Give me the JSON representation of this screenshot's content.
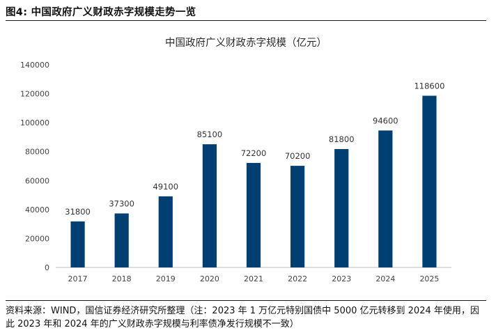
{
  "figure_heading": "图4: 中国政府广义财政赤字规模走势一览",
  "source_note": "资料来源：WIND，国信证券经济研究所整理（注：2023 年 1 万亿元特别国债中 5000 亿元转移到 2024 年使用，因此 2023 年和 2024 年的广义财政赤字规模与利率债净发行规模不一致）",
  "colors": {
    "bar": "#003F72",
    "axis": "#bfbfbf"
  },
  "chart_data": {
    "type": "bar",
    "title": "中国政府广义财政赤字规模（亿元）",
    "categories": [
      "2017",
      "2018",
      "2019",
      "2020",
      "2021",
      "2022",
      "2023",
      "2024",
      "2025"
    ],
    "values": [
      31800,
      37300,
      49100,
      85100,
      72200,
      70200,
      81800,
      94600,
      118600
    ],
    "yticks": [
      "0",
      "20000",
      "40000",
      "60000",
      "80000",
      "100000",
      "120000",
      "140000"
    ],
    "ylim": [
      0,
      140000
    ],
    "grid": false,
    "legend": "none"
  }
}
